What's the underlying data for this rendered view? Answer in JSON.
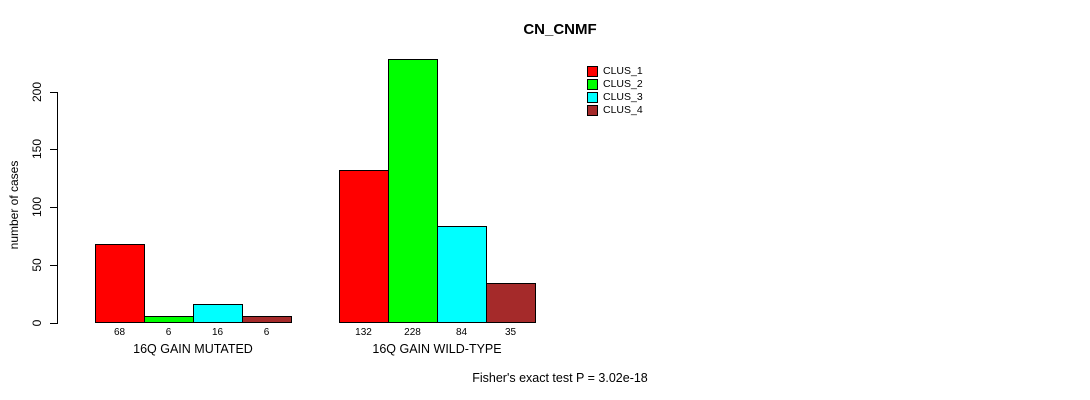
{
  "title": "CN_CNMF",
  "ylabel": "number of cases",
  "footnote": "Fisher's exact test P = 3.02e-18",
  "chart_data": {
    "type": "bar",
    "title": "CN_CNMF",
    "xlabel": "",
    "ylabel": "number of cases",
    "ylim": [
      0,
      230
    ],
    "yticks": [
      0,
      50,
      100,
      150,
      200
    ],
    "grid": false,
    "legend_position": "top-right",
    "bar_value_labels": true,
    "categories": [
      "16Q GAIN MUTATED",
      "16Q GAIN WILD-TYPE"
    ],
    "series": [
      {
        "name": "CLUS_1",
        "color": "#ff0000",
        "values": [
          68,
          132
        ]
      },
      {
        "name": "CLUS_2",
        "color": "#00ff00",
        "values": [
          6,
          228
        ]
      },
      {
        "name": "CLUS_3",
        "color": "#00ffff",
        "values": [
          16,
          84
        ]
      },
      {
        "name": "CLUS_4",
        "color": "#a52a2a",
        "values": [
          6,
          35
        ]
      }
    ],
    "annotation": "Fisher's exact test P = 3.02e-18"
  }
}
